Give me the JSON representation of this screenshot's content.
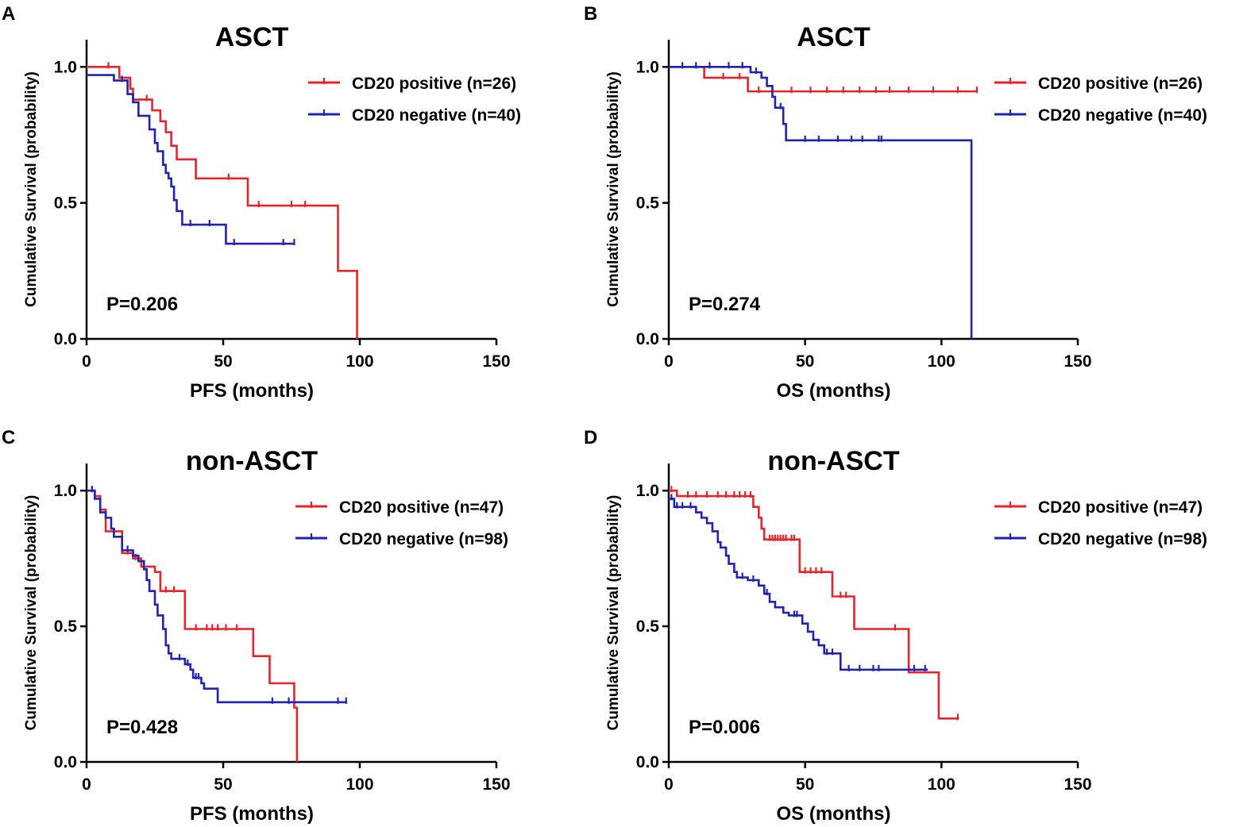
{
  "chart_data": [
    {
      "panel": "A",
      "type": "line",
      "subtype": "kaplan-meier",
      "title": "ASCT",
      "xlabel": "PFS (months)",
      "ylabel": "Cumulative Survival (probability)",
      "xlim": [
        0,
        150
      ],
      "ylim": [
        0,
        1.1
      ],
      "xticks": [
        "0",
        "50",
        "100",
        "150"
      ],
      "yticks": [
        "0.0",
        "0.5",
        "1.0"
      ],
      "legend_position": "top-right",
      "p_value": "P=0.206",
      "series": [
        {
          "name": "CD20 positive (n=26)",
          "color": "#e8242b",
          "steps": [
            [
              0,
              1.0
            ],
            [
              12,
              0.96
            ],
            [
              16,
              0.92
            ],
            [
              17,
              0.88
            ],
            [
              20,
              0.88
            ],
            [
              24,
              0.84
            ],
            [
              27,
              0.8
            ],
            [
              29,
              0.76
            ],
            [
              31,
              0.71
            ],
            [
              33,
              0.66
            ],
            [
              40,
              0.59
            ],
            [
              59,
              0.49
            ],
            [
              92,
              0.25
            ],
            [
              99,
              0.0
            ]
          ],
          "end": 99,
          "censored": [
            [
              8,
              1.0
            ],
            [
              22,
              0.88
            ],
            [
              52,
              0.59
            ],
            [
              63,
              0.49
            ],
            [
              75,
              0.49
            ],
            [
              80,
              0.49
            ]
          ]
        },
        {
          "name": "CD20 negative (n=40)",
          "color": "#1f22b4",
          "steps": [
            [
              0,
              0.97
            ],
            [
              10,
              0.95
            ],
            [
              15,
              0.9
            ],
            [
              17,
              0.87
            ],
            [
              19,
              0.82
            ],
            [
              23,
              0.77
            ],
            [
              25,
              0.72
            ],
            [
              26,
              0.69
            ],
            [
              28,
              0.64
            ],
            [
              29,
              0.61
            ],
            [
              30,
              0.59
            ],
            [
              31,
              0.56
            ],
            [
              32,
              0.51
            ],
            [
              33,
              0.47
            ],
            [
              35,
              0.42
            ],
            [
              51,
              0.35
            ]
          ],
          "end": 76,
          "censored": [
            [
              13,
              0.95
            ],
            [
              38,
              0.42
            ],
            [
              45,
              0.42
            ],
            [
              54,
              0.35
            ],
            [
              72,
              0.35
            ],
            [
              76,
              0.35
            ]
          ]
        }
      ]
    },
    {
      "panel": "B",
      "type": "line",
      "subtype": "kaplan-meier",
      "title": "ASCT",
      "xlabel": "OS (months)",
      "ylabel": "Cumulative Survival (probability)",
      "xlim": [
        0,
        150
      ],
      "ylim": [
        0,
        1.1
      ],
      "xticks": [
        "0",
        "50",
        "100",
        "150"
      ],
      "yticks": [
        "0.0",
        "0.5",
        "1.0"
      ],
      "legend_position": "top-right",
      "p_value": "P=0.274",
      "series": [
        {
          "name": "CD20 positive (n=26)",
          "color": "#e8242b",
          "steps": [
            [
              0,
              1.0
            ],
            [
              13,
              0.96
            ],
            [
              29,
              0.91
            ]
          ],
          "end": 113,
          "censored": [
            [
              20,
              0.96
            ],
            [
              26,
              0.96
            ],
            [
              33,
              0.91
            ],
            [
              38,
              0.91
            ],
            [
              45,
              0.91
            ],
            [
              52,
              0.91
            ],
            [
              58,
              0.91
            ],
            [
              64,
              0.91
            ],
            [
              70,
              0.91
            ],
            [
              76,
              0.91
            ],
            [
              81,
              0.91
            ],
            [
              88,
              0.91
            ],
            [
              97,
              0.91
            ],
            [
              106,
              0.91
            ],
            [
              113,
              0.91
            ]
          ]
        },
        {
          "name": "CD20 negative (n=40)",
          "color": "#1f22b4",
          "steps": [
            [
              0,
              1.0
            ],
            [
              30,
              0.98
            ],
            [
              34,
              0.96
            ],
            [
              36,
              0.93
            ],
            [
              38,
              0.89
            ],
            [
              39,
              0.85
            ],
            [
              42,
              0.79
            ],
            [
              43,
              0.73
            ],
            [
              111,
              0.0
            ]
          ],
          "end": 111,
          "censored": [
            [
              5,
              1.0
            ],
            [
              10,
              1.0
            ],
            [
              15,
              1.0
            ],
            [
              22,
              1.0
            ],
            [
              27,
              1.0
            ],
            [
              32,
              0.98
            ],
            [
              41,
              0.85
            ],
            [
              50,
              0.73
            ],
            [
              55,
              0.73
            ],
            [
              62,
              0.73
            ],
            [
              67,
              0.73
            ],
            [
              71,
              0.73
            ],
            [
              77,
              0.73
            ],
            [
              78,
              0.73
            ]
          ]
        }
      ]
    },
    {
      "panel": "C",
      "type": "line",
      "subtype": "kaplan-meier",
      "title": "non-ASCT",
      "xlabel": "PFS (months)",
      "ylabel": "Cumulative Survival (probability)",
      "xlim": [
        0,
        150
      ],
      "ylim": [
        0,
        1.1
      ],
      "xticks": [
        "0",
        "50",
        "100",
        "150"
      ],
      "yticks": [
        "0.0",
        "0.5",
        "1.0"
      ],
      "legend_position": "top-right",
      "p_value": "P=0.428",
      "series": [
        {
          "name": "CD20 positive (n=47)",
          "color": "#e8242b",
          "steps": [
            [
              0,
              1.0
            ],
            [
              3,
              0.98
            ],
            [
              5,
              0.93
            ],
            [
              7,
              0.85
            ],
            [
              13,
              0.77
            ],
            [
              17,
              0.75
            ],
            [
              20,
              0.72
            ],
            [
              25,
              0.7
            ],
            [
              27,
              0.63
            ],
            [
              36,
              0.49
            ],
            [
              61,
              0.39
            ],
            [
              67,
              0.29
            ],
            [
              76,
              0.2
            ],
            [
              77,
              0.0
            ]
          ],
          "end": 77,
          "censored": [
            [
              15,
              0.77
            ],
            [
              18,
              0.75
            ],
            [
              21,
              0.72
            ],
            [
              29,
              0.63
            ],
            [
              32,
              0.63
            ],
            [
              40,
              0.49
            ],
            [
              44,
              0.49
            ],
            [
              46,
              0.49
            ],
            [
              48,
              0.49
            ],
            [
              51,
              0.49
            ],
            [
              55,
              0.49
            ]
          ]
        },
        {
          "name": "CD20 negative (n=98)",
          "color": "#1f22b4",
          "steps": [
            [
              0,
              1.0
            ],
            [
              3,
              0.97
            ],
            [
              5,
              0.92
            ],
            [
              7,
              0.9
            ],
            [
              9,
              0.86
            ],
            [
              10,
              0.83
            ],
            [
              13,
              0.78
            ],
            [
              17,
              0.76
            ],
            [
              19,
              0.74
            ],
            [
              21,
              0.71
            ],
            [
              22,
              0.67
            ],
            [
              23,
              0.63
            ],
            [
              25,
              0.58
            ],
            [
              26,
              0.54
            ],
            [
              28,
              0.49
            ],
            [
              29,
              0.43
            ],
            [
              30,
              0.4
            ],
            [
              31,
              0.38
            ],
            [
              36,
              0.36
            ],
            [
              38,
              0.34
            ],
            [
              39,
              0.31
            ],
            [
              42,
              0.29
            ],
            [
              43,
              0.27
            ],
            [
              48,
              0.22
            ]
          ],
          "end": 95,
          "censored": [
            [
              2,
              1.0
            ],
            [
              15,
              0.78
            ],
            [
              34,
              0.38
            ],
            [
              37,
              0.36
            ],
            [
              40,
              0.31
            ],
            [
              41,
              0.31
            ],
            [
              68,
              0.22
            ],
            [
              74,
              0.22
            ],
            [
              92,
              0.22
            ],
            [
              95,
              0.22
            ]
          ]
        }
      ]
    },
    {
      "panel": "D",
      "type": "line",
      "subtype": "kaplan-meier",
      "title": "non-ASCT",
      "xlabel": "OS (months)",
      "ylabel": "Cumulative Survival (probability)",
      "xlim": [
        0,
        150
      ],
      "ylim": [
        0,
        1.1
      ],
      "xticks": [
        "0",
        "50",
        "100",
        "150"
      ],
      "yticks": [
        "0.0",
        "0.5",
        "1.0"
      ],
      "legend_position": "top-right",
      "p_value": "P=0.006",
      "series": [
        {
          "name": "CD20 positive (n=47)",
          "color": "#e8242b",
          "steps": [
            [
              0,
              1.0
            ],
            [
              3,
              0.98
            ],
            [
              31,
              0.94
            ],
            [
              33,
              0.9
            ],
            [
              34,
              0.86
            ],
            [
              35,
              0.82
            ],
            [
              48,
              0.7
            ],
            [
              60,
              0.61
            ],
            [
              68,
              0.49
            ],
            [
              88,
              0.33
            ],
            [
              99,
              0.16
            ]
          ],
          "end": 106,
          "censored": [
            [
              1,
              1.0
            ],
            [
              7,
              0.98
            ],
            [
              10,
              0.98
            ],
            [
              14,
              0.98
            ],
            [
              18,
              0.98
            ],
            [
              21,
              0.98
            ],
            [
              24,
              0.98
            ],
            [
              26,
              0.98
            ],
            [
              28,
              0.98
            ],
            [
              30,
              0.98
            ],
            [
              37,
              0.82
            ],
            [
              38,
              0.82
            ],
            [
              39,
              0.82
            ],
            [
              40,
              0.82
            ],
            [
              41,
              0.82
            ],
            [
              42,
              0.82
            ],
            [
              43,
              0.82
            ],
            [
              45,
              0.82
            ],
            [
              46,
              0.82
            ],
            [
              50,
              0.7
            ],
            [
              52,
              0.7
            ],
            [
              54,
              0.7
            ],
            [
              56,
              0.7
            ],
            [
              63,
              0.61
            ],
            [
              65,
              0.61
            ],
            [
              83,
              0.49
            ],
            [
              106,
              0.16
            ]
          ]
        },
        {
          "name": "CD20 negative (n=98)",
          "color": "#1f22b4",
          "steps": [
            [
              0,
              0.97
            ],
            [
              2,
              0.94
            ],
            [
              10,
              0.92
            ],
            [
              12,
              0.9
            ],
            [
              14,
              0.88
            ],
            [
              16,
              0.85
            ],
            [
              18,
              0.81
            ],
            [
              19,
              0.79
            ],
            [
              21,
              0.76
            ],
            [
              22,
              0.73
            ],
            [
              24,
              0.7
            ],
            [
              25,
              0.68
            ],
            [
              29,
              0.67
            ],
            [
              33,
              0.65
            ],
            [
              35,
              0.62
            ],
            [
              37,
              0.59
            ],
            [
              39,
              0.57
            ],
            [
              42,
              0.55
            ],
            [
              44,
              0.54
            ],
            [
              49,
              0.51
            ],
            [
              51,
              0.48
            ],
            [
              53,
              0.45
            ],
            [
              55,
              0.43
            ],
            [
              57,
              0.4
            ],
            [
              63,
              0.34
            ]
          ],
          "end": 95,
          "censored": [
            [
              1,
              0.97
            ],
            [
              3,
              0.94
            ],
            [
              5,
              0.94
            ],
            [
              8,
              0.94
            ],
            [
              27,
              0.68
            ],
            [
              31,
              0.67
            ],
            [
              36,
              0.62
            ],
            [
              46,
              0.54
            ],
            [
              47,
              0.54
            ],
            [
              58,
              0.4
            ],
            [
              60,
              0.4
            ],
            [
              66,
              0.34
            ],
            [
              70,
              0.34
            ],
            [
              75,
              0.34
            ],
            [
              77,
              0.34
            ],
            [
              90,
              0.34
            ],
            [
              94,
              0.34
            ]
          ]
        }
      ]
    }
  ]
}
